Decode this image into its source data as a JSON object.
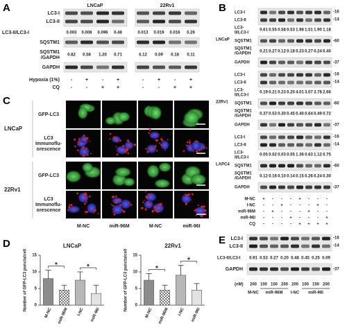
{
  "panel_a": {
    "label": "A",
    "cell_lines": [
      "LNCaP",
      "22Rv1"
    ],
    "blot_labels": [
      "LC3-I",
      "LC3-II"
    ],
    "ratio_label": "LC3-II/LC3-I",
    "ratios": [
      "0.003",
      "0.008",
      "0.096",
      "0.48",
      "0.013",
      "0.019",
      "0.016",
      "0.26"
    ],
    "sqstm1_label": "SQSTM1",
    "sqstm1_ratio_label": [
      "SQSTM1",
      "/GAPDH"
    ],
    "sqstm1_ratios": [
      "0.82",
      "0.58",
      "1.20",
      "0.71",
      "0.12",
      "0.09",
      "0.18",
      "0.11"
    ],
    "gapdh_label": "GAPDH",
    "treatments": [
      {
        "name": "Hypoxia (1%)",
        "signs": [
          "-",
          "+",
          "-",
          "+",
          "-",
          "+",
          "-",
          "+"
        ]
      },
      {
        "name": "CQ",
        "signs": [
          "-",
          "-",
          "+",
          "+",
          "-",
          "-",
          "+",
          "+"
        ]
      }
    ]
  },
  "panel_b": {
    "label": "B",
    "blot_labels": [
      "LC3-I",
      "LC3-II"
    ],
    "ratio_label": [
      "LC3-",
      "II/LC3-I"
    ],
    "sqstm1_label": "SQSTM1",
    "sqstm1_ratio_label": [
      "SQSTM1",
      "/GAPDH"
    ],
    "gapdh_label": "GAPDH",
    "markers": [
      "-16",
      "-14",
      "-60",
      "-37"
    ],
    "groups": [
      {
        "cell_line": "LNCaP",
        "ratios": [
          "0.61",
          "0.55",
          "0.58",
          "0.53",
          "1.98",
          "1.51",
          "1.90",
          "1.18"
        ],
        "sqstm1_ratios": [
          "0.21",
          "0.27",
          "0.12",
          "0.18",
          "0.23",
          "0.27",
          "0.24",
          "0.40"
        ]
      },
      {
        "cell_line": "22Rv1",
        "ratios": [
          "0.19",
          "0.21",
          "0.23",
          "0.25",
          "4.01",
          "3.07",
          "3.78",
          "2.66"
        ],
        "sqstm1_ratios": [
          "0.37",
          "0.53",
          "0.30",
          "0.45",
          "0.40",
          "0.64",
          "0.49",
          "0.72"
        ]
      },
      {
        "cell_line": "LAPC4",
        "ratios": [
          "0.05",
          "0.02",
          "0.03",
          "0.05",
          "1.36",
          "0.63",
          "1.12",
          "0.75"
        ],
        "sqstm1_ratios": [
          "0.12",
          "0.16",
          "0.10",
          "0.14",
          "0.15",
          "0.26",
          "0.24",
          "0.30"
        ]
      }
    ],
    "treatments": [
      {
        "name": "M-NC",
        "signs": [
          "+",
          "-",
          "-",
          "-",
          "+",
          "-",
          "-",
          "-"
        ]
      },
      {
        "name": "I-NC",
        "signs": [
          "-",
          "-",
          "+",
          "-",
          "-",
          "-",
          "+",
          "-"
        ]
      },
      {
        "name": "miR-96M",
        "signs": [
          "-",
          "+",
          "-",
          "-",
          "-",
          "+",
          "-",
          "-"
        ]
      },
      {
        "name": "miR-96I",
        "signs": [
          "-",
          "-",
          "-",
          "+",
          "-",
          "-",
          "-",
          "+"
        ]
      },
      {
        "name": "CQ",
        "signs": [
          "-",
          "-",
          "-",
          "-",
          "+",
          "+",
          "+",
          "+"
        ]
      }
    ]
  },
  "panel_c": {
    "label": "C",
    "rows": [
      {
        "cell_line": "LNCaP",
        "channels": [
          [
            "GFP-LC3"
          ],
          [
            "LC3",
            "Immunoflu-",
            "orescence"
          ]
        ]
      },
      {
        "cell_line": "22Rv1",
        "channels": [
          [
            "GFP-LC3"
          ],
          [
            "LC3",
            "Immunoflu-",
            "orescence"
          ]
        ]
      }
    ],
    "columns": [
      "M-NC",
      "miR-96M",
      "M-NC",
      "miR-96I"
    ]
  },
  "panel_d": {
    "label": "D"
  },
  "chart_data": [
    {
      "type": "bar",
      "title": "LNCaP",
      "y_label": "Number of GFP-LC3 puncta/cell",
      "categories": [
        "M-NC",
        "miR-96M",
        "I-NC",
        "miR-96I"
      ],
      "values": [
        8,
        4.5,
        7.5,
        3.5
      ],
      "errors": [
        2.5,
        1.5,
        2.5,
        2.5
      ],
      "colors": [
        "#8c8c8c",
        "#d2d2d2",
        "#b8b8b8",
        "#e2e2e2"
      ],
      "ylim": [
        0,
        15
      ],
      "yticks": [
        0,
        5,
        10,
        15
      ],
      "annotations": [
        "*",
        "*"
      ]
    },
    {
      "type": "bar",
      "title": "22Rv1",
      "y_label": "Number of GFP-LC3 puncta/cell",
      "categories": [
        "M-NC",
        "miR-96M",
        "I-NC",
        "miR-96I"
      ],
      "values": [
        7.5,
        4.5,
        9,
        4.5
      ],
      "errors": [
        2,
        1.5,
        3,
        2
      ],
      "colors": [
        "#8c8c8c",
        "#d2d2d2",
        "#b8b8b8",
        "#e2e2e2"
      ],
      "ylim": [
        0,
        15
      ],
      "yticks": [
        0,
        5,
        10,
        15
      ],
      "annotations": [
        "*",
        "*"
      ]
    }
  ],
  "panel_e": {
    "label": "E",
    "blot_labels": [
      "LC3-I",
      "LC3-II"
    ],
    "markers": [
      "-16",
      "-14",
      "-37"
    ],
    "ratio_label": "LC3-II/LC3-I",
    "ratios": [
      "0.91",
      "0.53",
      "0.27",
      "0.20",
      "0.48",
      "0.45",
      "0.25",
      "0.09"
    ],
    "gapdh_label": "GAPDH",
    "unit": "(nM)",
    "doses": [
      200,
      100,
      150,
      200,
      200,
      100,
      150,
      200
    ],
    "groups": [
      "M-NC",
      "miR-96M",
      "I-NC",
      "miR-96I"
    ]
  }
}
